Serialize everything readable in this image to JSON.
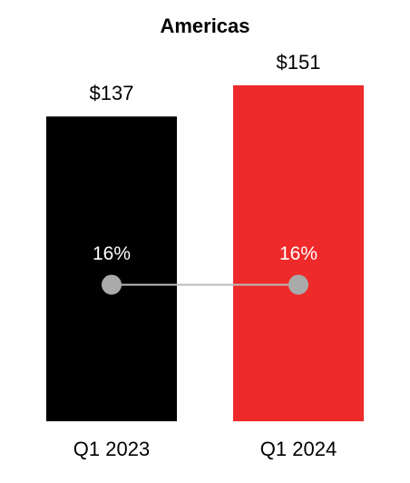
{
  "chart_data": {
    "type": "bar",
    "title": "Americas",
    "categories": [
      "Q1 2023",
      "Q1 2024"
    ],
    "series": [
      {
        "type": "bar",
        "colors": [
          "#000000",
          "#ee2a2a"
        ],
        "values": [
          137,
          151
        ],
        "value_labels": [
          "$137",
          "$151"
        ]
      },
      {
        "type": "line",
        "color": "#aaaaaa",
        "values": [
          16,
          16
        ],
        "value_labels": [
          "16%",
          "16%"
        ]
      }
    ]
  }
}
